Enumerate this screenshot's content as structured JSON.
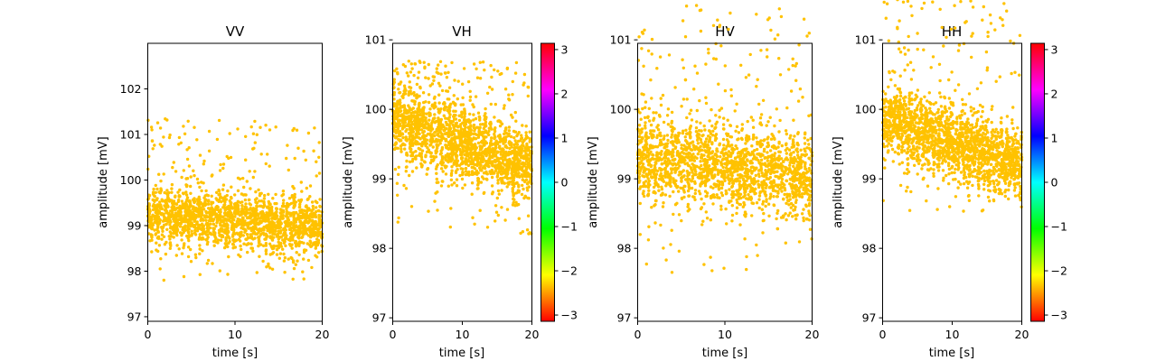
{
  "chart_data": [
    {
      "type": "scatter",
      "title": "VV",
      "xlabel": "time [s]",
      "ylabel": "amplitude [mV]",
      "xlim": [
        0,
        20
      ],
      "ylim": [
        96.9,
        103.0
      ],
      "xticks": [
        0,
        10,
        20
      ],
      "yticks": [
        97,
        98,
        99,
        100,
        101,
        102
      ],
      "point_color": "#ffc200",
      "trend": {
        "x": [
          0,
          20
        ],
        "y": [
          99.25,
          99.0
        ]
      },
      "core_halfwidth": 0.55,
      "outliers": {
        "min": 97.8,
        "max": 101.35
      },
      "colorbar": null
    },
    {
      "type": "scatter",
      "title": "VH",
      "xlabel": "time [s]",
      "ylabel": "amplitude [mV]",
      "xlim": [
        0,
        20
      ],
      "ylim": [
        96.95,
        100.95
      ],
      "xticks": [
        0,
        10,
        20
      ],
      "yticks": [
        97,
        98,
        99,
        100,
        101
      ],
      "point_color": "#ffc200",
      "trend": {
        "x": [
          0,
          20
        ],
        "y": [
          99.85,
          99.15
        ]
      },
      "core_halfwidth": 0.45,
      "outliers": {
        "min": 98.2,
        "max": 100.7
      },
      "colorbar": {
        "ticks": [
          -3,
          -2,
          -1,
          0,
          1,
          2,
          3
        ],
        "tick_labels": [
          "−3",
          "−2",
          "−1",
          "0",
          "1",
          "2",
          "3"
        ],
        "range": [
          -3.14159,
          3.14159
        ],
        "colors": [
          "#ff0000",
          "#ffff00",
          "#00ff00",
          "#00ffff",
          "#0000ff",
          "#ff00ff",
          "#ff0000"
        ]
      }
    },
    {
      "type": "scatter",
      "title": "HV",
      "xlabel": "time [s]",
      "ylabel": "amplitude [mV]",
      "xlim": [
        0,
        20
      ],
      "ylim": [
        96.95,
        100.95
      ],
      "xticks": [
        0,
        10,
        20
      ],
      "yticks": [
        97,
        98,
        99,
        100,
        101
      ],
      "point_color": "#ffc200",
      "trend": {
        "x": [
          0,
          20
        ],
        "y": [
          99.3,
          99.0
        ]
      },
      "core_halfwidth": 0.55,
      "outliers": {
        "min": 97.65,
        "max": 101.5
      },
      "colorbar": null
    },
    {
      "type": "scatter",
      "title": "HH",
      "xlabel": "time [s]",
      "ylabel": "amplitude [mV]",
      "xlim": [
        0,
        20
      ],
      "ylim": [
        96.95,
        100.95
      ],
      "xticks": [
        0,
        10,
        20
      ],
      "yticks": [
        97,
        98,
        99,
        100,
        101
      ],
      "point_color": "#ffc200",
      "trend": {
        "x": [
          0,
          20
        ],
        "y": [
          99.85,
          99.2
        ]
      },
      "core_halfwidth": 0.45,
      "outliers": {
        "min": 98.5,
        "max": 101.85
      },
      "colorbar": {
        "ticks": [
          -3,
          -2,
          -1,
          0,
          1,
          2,
          3
        ],
        "tick_labels": [
          "−3",
          "−2",
          "−1",
          "0",
          "1",
          "2",
          "3"
        ],
        "range": [
          -3.14159,
          3.14159
        ],
        "colors": [
          "#ff0000",
          "#ffff00",
          "#00ff00",
          "#00ffff",
          "#0000ff",
          "#ff00ff",
          "#ff0000"
        ]
      }
    }
  ]
}
